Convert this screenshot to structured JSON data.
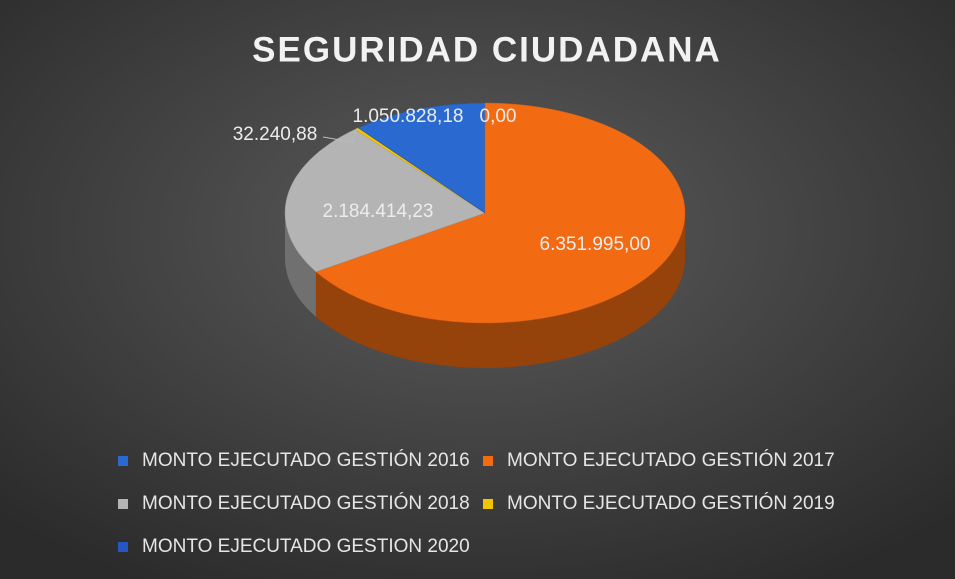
{
  "chart_data": {
    "type": "pie3d",
    "title": "SEGURIDAD CIUDADANA",
    "categories": [
      "MONTO EJECUTADO GESTIÓN 2016",
      "MONTO EJECUTADO GESTIÓN 2017",
      "MONTO EJECUTADO GESTIÓN 2018",
      "MONTO EJECUTADO GESTIÓN 2019",
      "MONTO EJECUTADO GESTION 2020"
    ],
    "values": [
      1050828.18,
      6351995.0,
      2184414.23,
      32240.88,
      0.0
    ],
    "value_labels": [
      "1.050.828,18",
      "6.351.995,00",
      "2.184.414,23",
      "32.240,88",
      "0,00"
    ],
    "colors": [
      "#2a6ad0",
      "#f26b12",
      "#b4b4b4",
      "#f2c500",
      "#2456c4"
    ],
    "legend": "bottom"
  }
}
